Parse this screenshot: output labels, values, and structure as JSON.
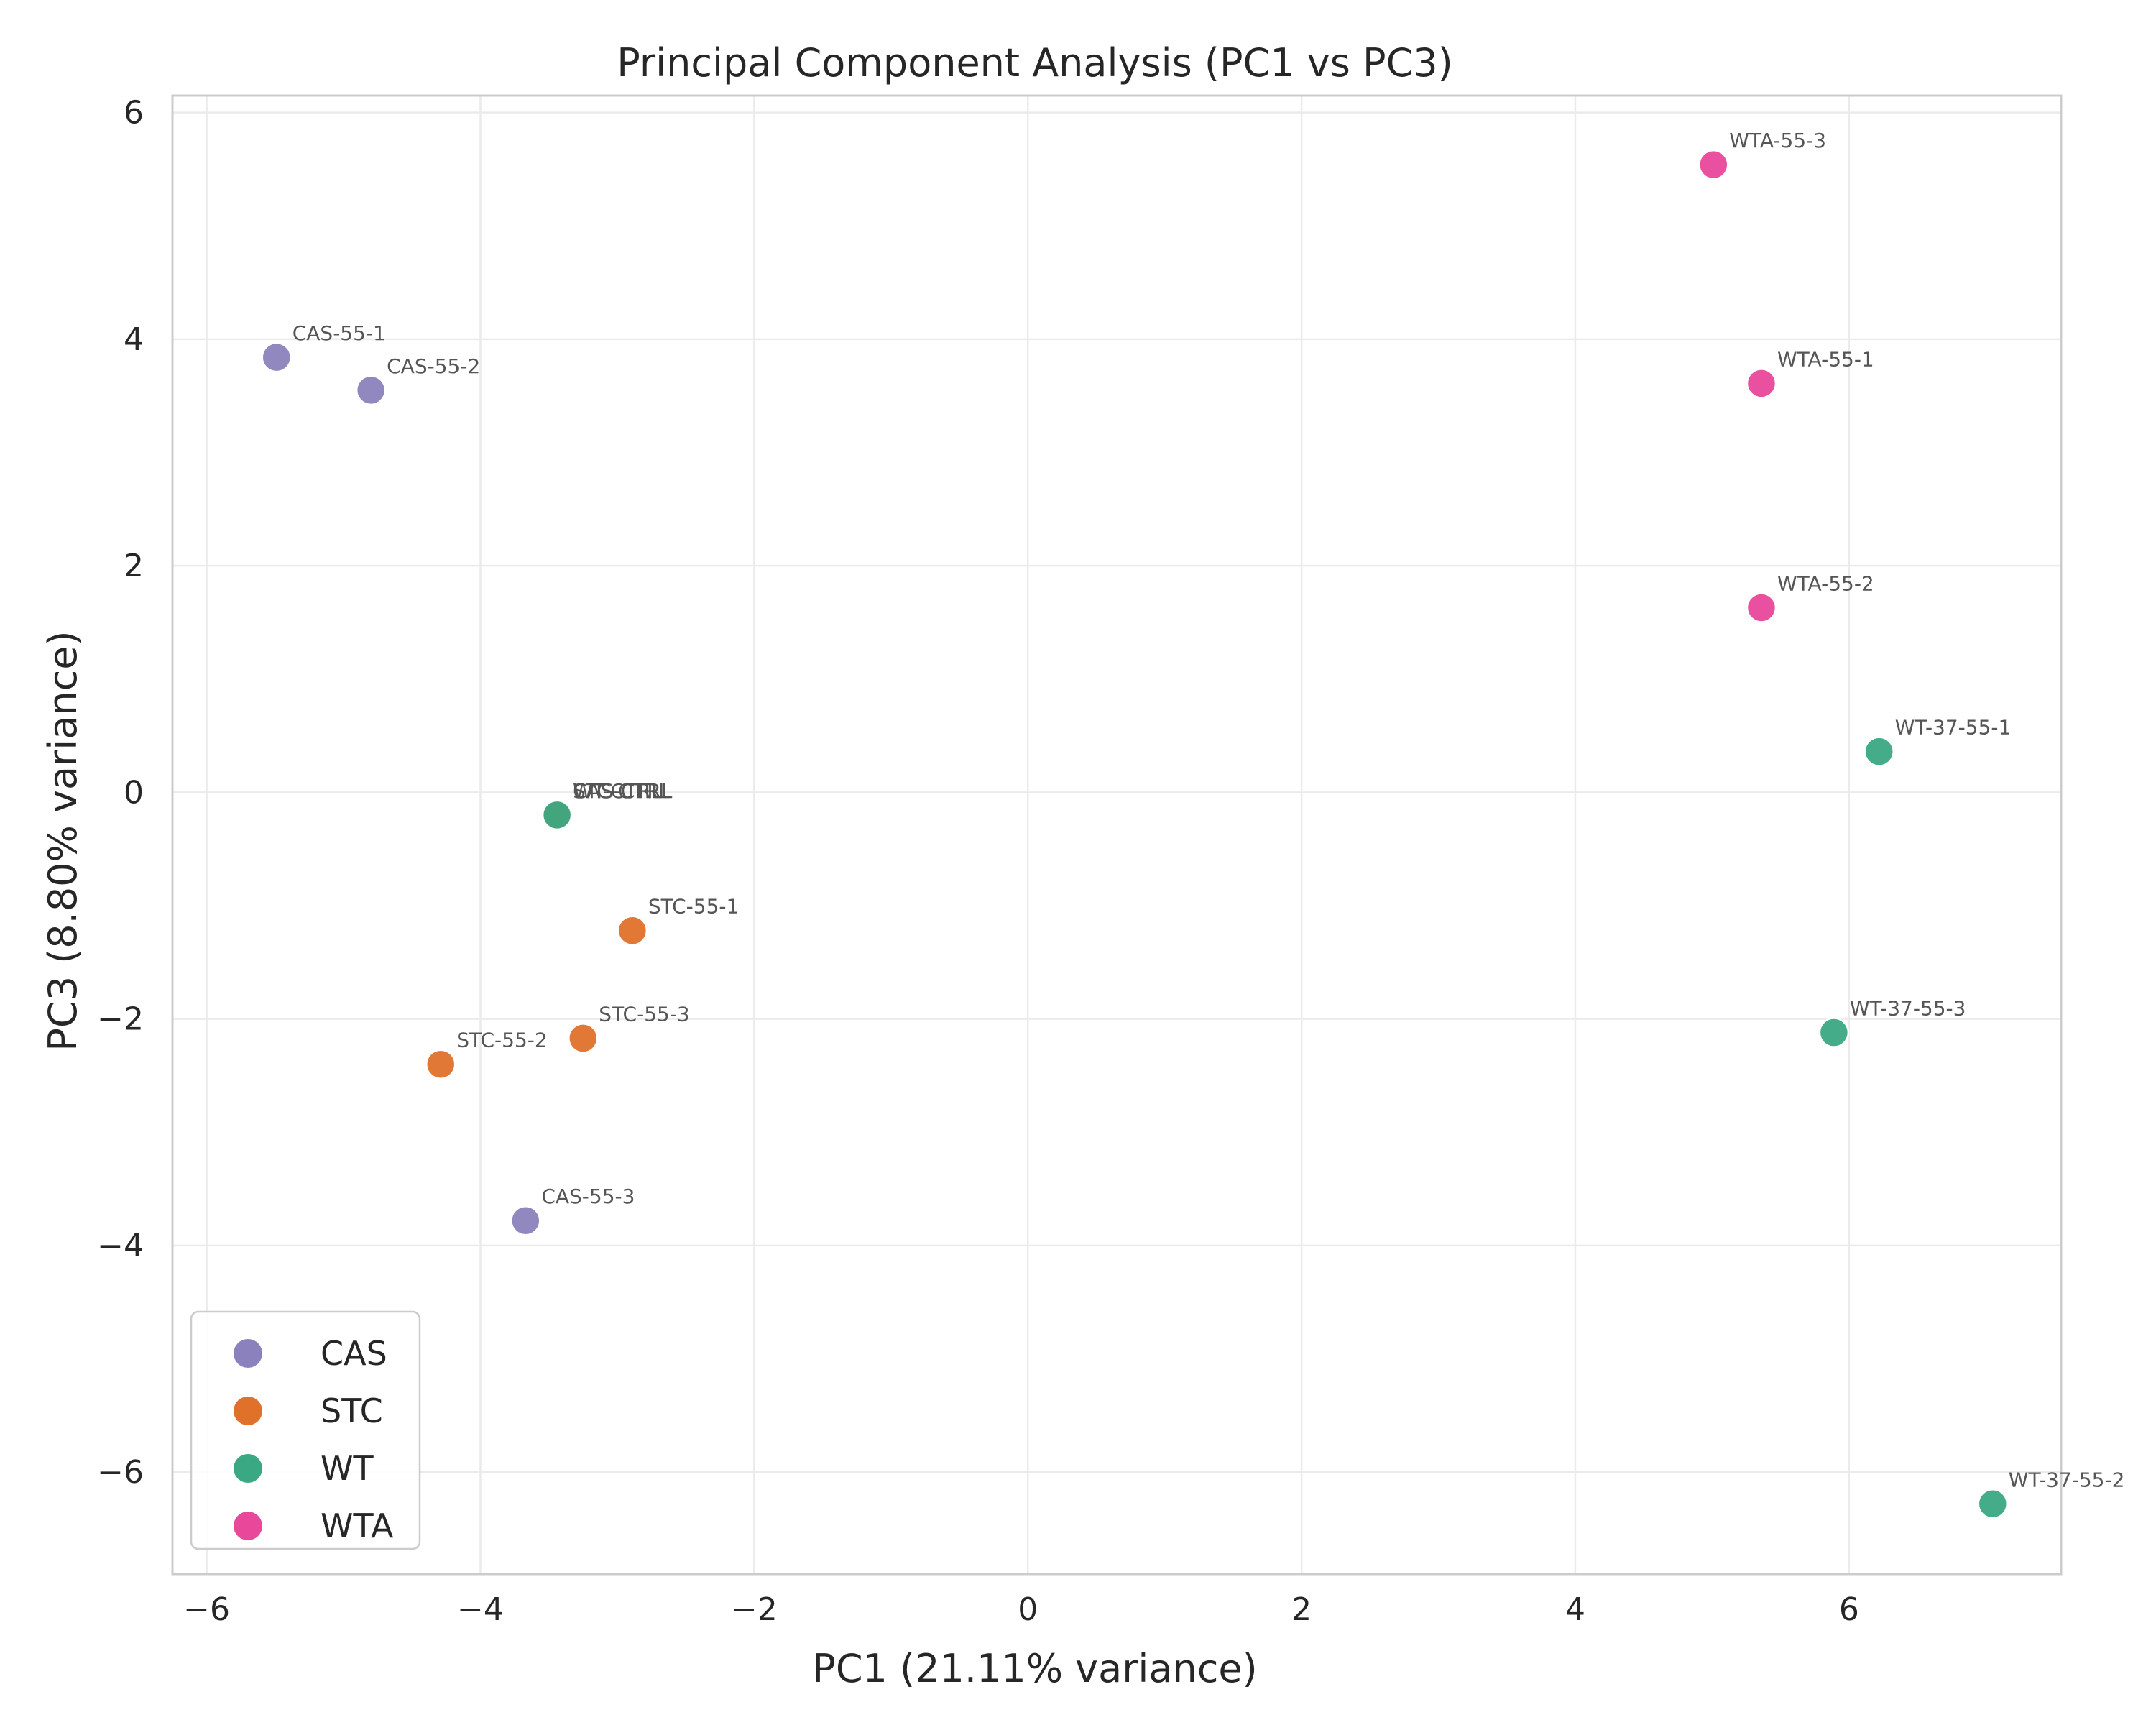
{
  "chart_data": {
    "type": "scatter",
    "title": "Principal Component Analysis (PC1 vs PC3)",
    "xlabel": "PC1 (21.11% variance)",
    "ylabel": "PC3 (8.80% variance)",
    "xlim": [
      -6.25,
      7.55
    ],
    "ylim": [
      -6.9,
      6.15
    ],
    "xticks": [
      -6,
      -4,
      -2,
      0,
      2,
      4,
      6
    ],
    "yticks": [
      -6,
      -4,
      -2,
      0,
      2,
      4,
      6
    ],
    "grid": true,
    "legend_position": "lower-left",
    "series": [
      {
        "name": "CAS",
        "color": "#8b82bd",
        "points": [
          {
            "label": "CAS-55-1",
            "x": -5.49,
            "y": 3.84
          },
          {
            "label": "CAS-55-2",
            "x": -4.8,
            "y": 3.55
          },
          {
            "label": "CAS-55-3",
            "x": -3.67,
            "y": -3.78
          },
          {
            "label": "CAS-CTRL",
            "x": -3.44,
            "y": -0.2
          }
        ]
      },
      {
        "name": "STC",
        "color": "#e0712a",
        "points": [
          {
            "label": "STC-55-1",
            "x": -2.89,
            "y": -1.22
          },
          {
            "label": "STC-55-2",
            "x": -4.29,
            "y": -2.4
          },
          {
            "label": "STC-55-3",
            "x": -3.25,
            "y": -2.17
          },
          {
            "label": "STC-CTRL",
            "x": -3.44,
            "y": -0.2
          }
        ]
      },
      {
        "name": "WT",
        "color": "#3aa882",
        "points": [
          {
            "label": "WT-37-55-1",
            "x": 6.22,
            "y": 0.36
          },
          {
            "label": "WT-37-55-2",
            "x": 7.05,
            "y": -6.28
          },
          {
            "label": "WT-37-55-3",
            "x": 5.89,
            "y": -2.12
          },
          {
            "label": "WT-CTRL",
            "x": -3.44,
            "y": -0.2
          }
        ]
      },
      {
        "name": "WTA",
        "color": "#e8479a",
        "points": [
          {
            "label": "WTA-55-1",
            "x": 5.36,
            "y": 3.61
          },
          {
            "label": "WTA-55-2",
            "x": 5.36,
            "y": 1.63
          },
          {
            "label": "WTA-55-3",
            "x": 5.01,
            "y": 5.54
          }
        ]
      }
    ]
  }
}
